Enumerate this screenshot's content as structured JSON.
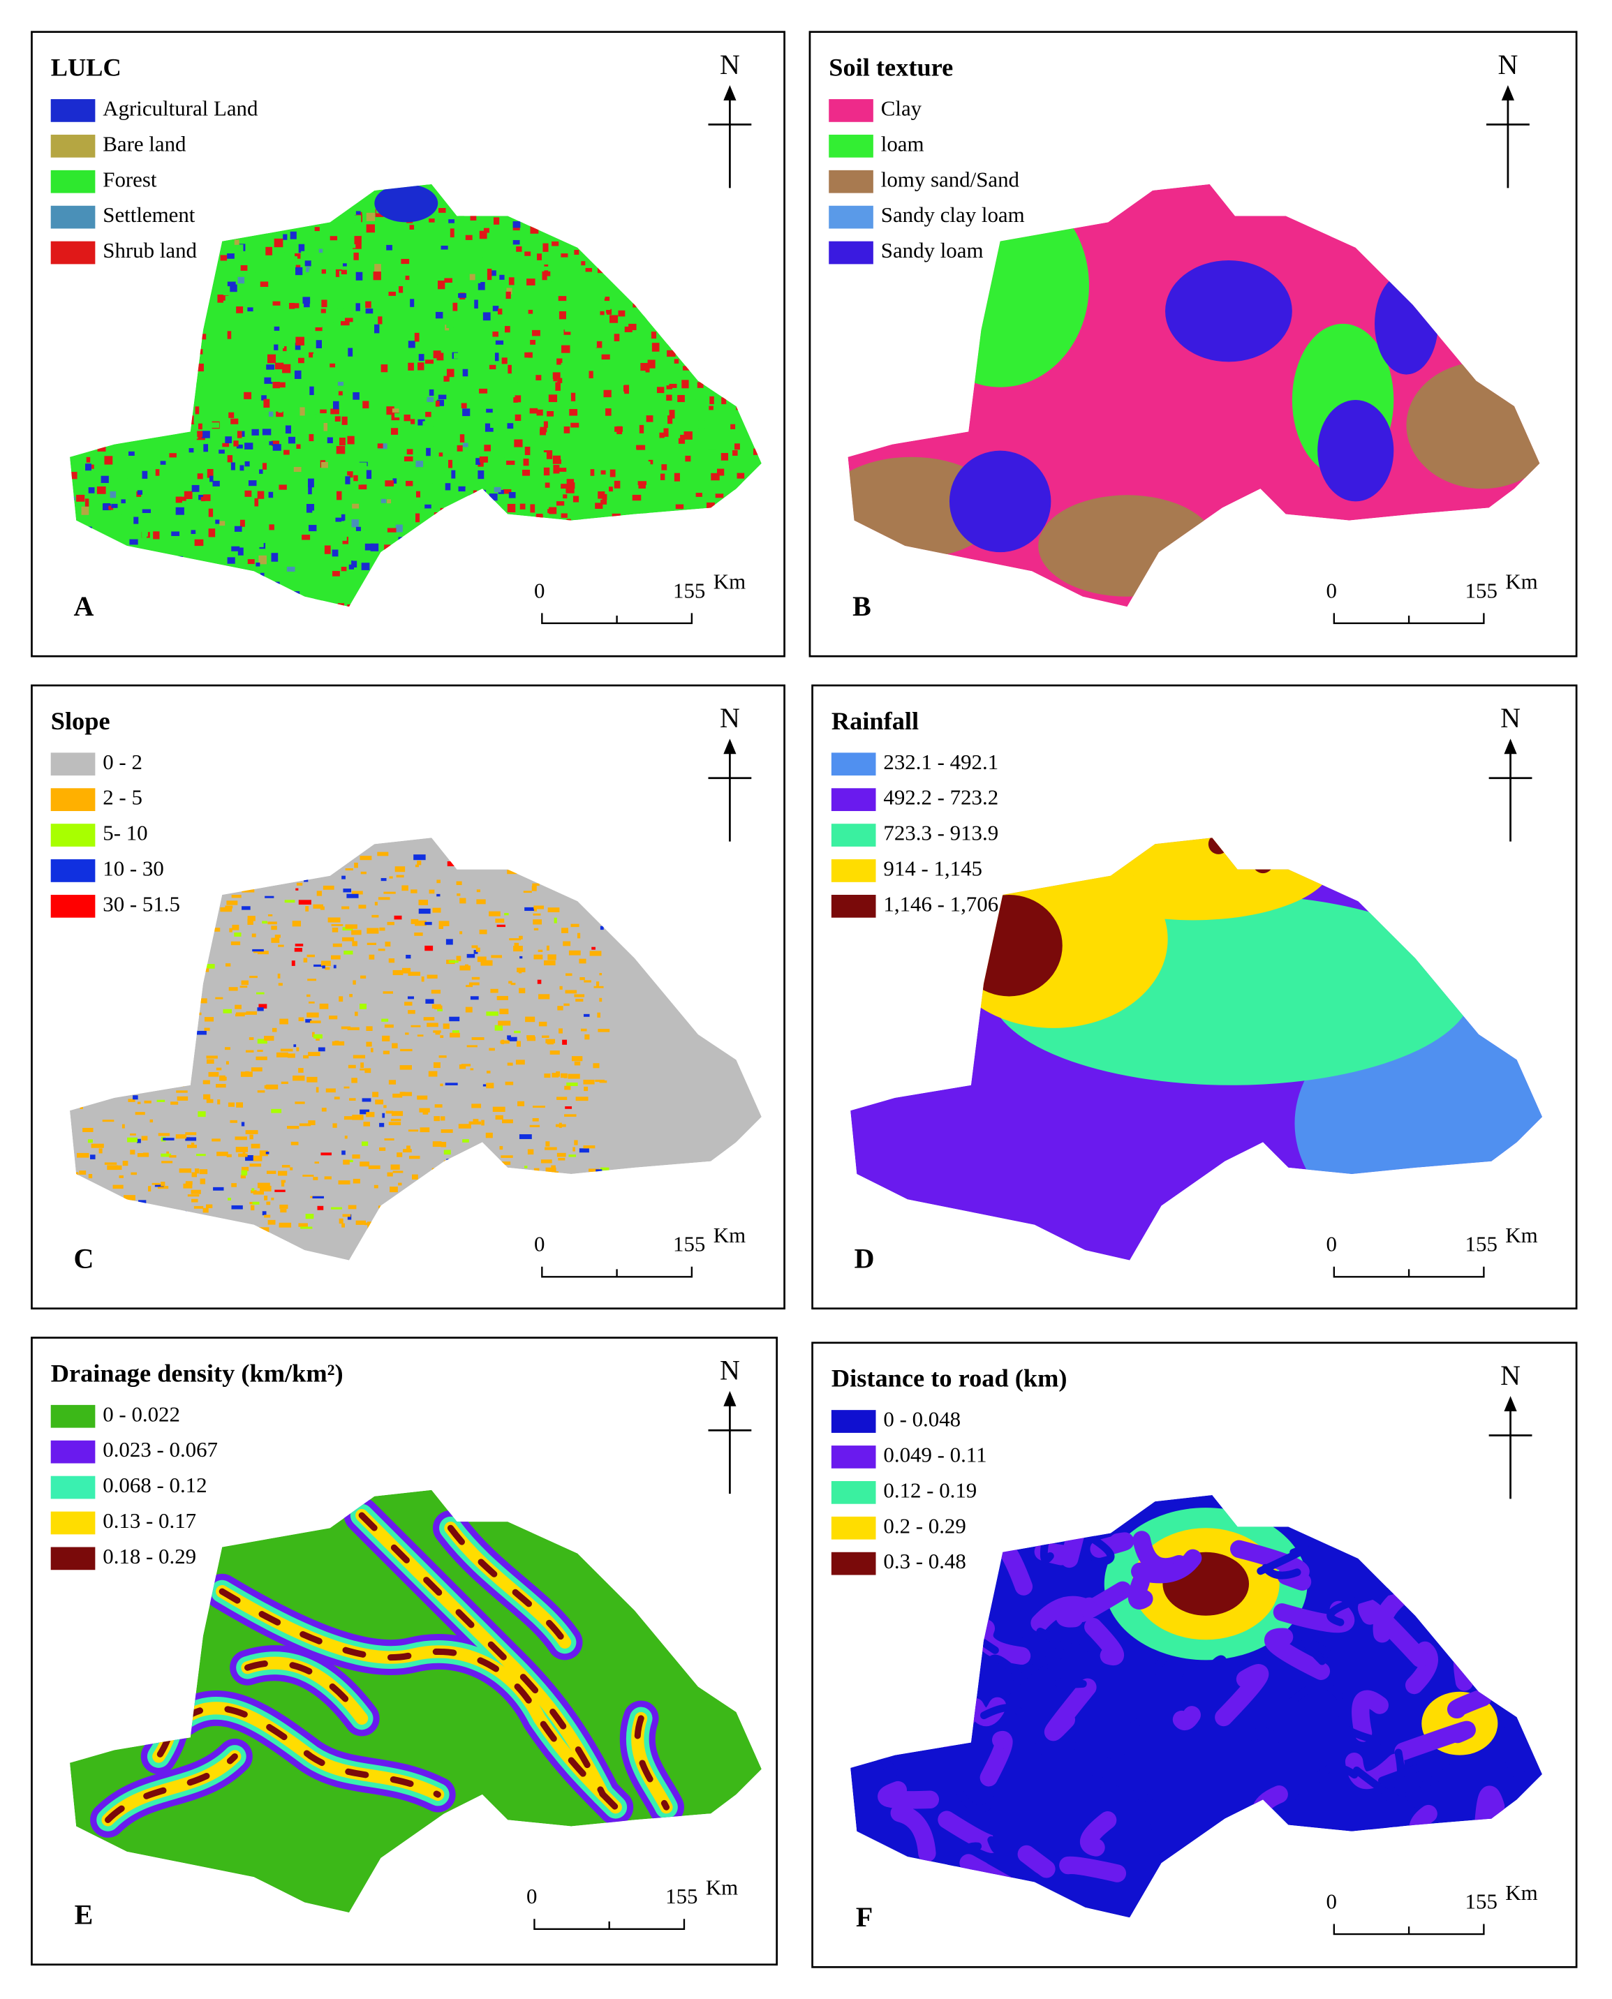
{
  "panels": [
    {
      "letter": "A",
      "title": "LULC",
      "north": "N",
      "scale": [
        "0",
        "155"
      ],
      "unit": "Km",
      "legend": [
        {
          "label": "Agricultural Land",
          "color": "#1a2bd0"
        },
        {
          "label": "Bare land",
          "color": "#b5a642"
        },
        {
          "label": "Forest",
          "color": "#2ee82e"
        },
        {
          "label": "Settlement",
          "color": "#4a90b8"
        },
        {
          "label": "Shrub land",
          "color": "#e01818"
        }
      ]
    },
    {
      "letter": "B",
      "title": "Soil texture",
      "north": "N",
      "scale": [
        "0",
        "155"
      ],
      "unit": "Km",
      "legend": [
        {
          "label": "Clay",
          "color": "#ee2a8a"
        },
        {
          "label": "loam",
          "color": "#33ee33"
        },
        {
          "label": "lomy sand/Sand",
          "color": "#a87a50"
        },
        {
          "label": "Sandy clay loam",
          "color": "#5a9ae8"
        },
        {
          "label": "Sandy loam",
          "color": "#3a1ae0"
        }
      ]
    },
    {
      "letter": "C",
      "title": "Slope",
      "north": "N",
      "scale": [
        "0",
        "155"
      ],
      "unit": "Km",
      "legend": [
        {
          "label": "0 - 2",
          "color": "#bdbdbd"
        },
        {
          "label": "2 - 5",
          "color": "#ffb000"
        },
        {
          "label": "5- 10",
          "color": "#a8ff00"
        },
        {
          "label": "10 - 30",
          "color": "#1030e0"
        },
        {
          "label": "30 - 51.5",
          "color": "#ff0000"
        }
      ]
    },
    {
      "letter": "D",
      "title": "Rainfall",
      "north": "N",
      "scale": [
        "0",
        "155"
      ],
      "unit": "Km",
      "legend": [
        {
          "label": "232.1 - 492.1",
          "color": "#5090f0"
        },
        {
          "label": "492.2 - 723.2",
          "color": "#6a1aee"
        },
        {
          "label": "723.3 - 913.9",
          "color": "#3af0a0"
        },
        {
          "label": "914 - 1,145",
          "color": "#ffdd00"
        },
        {
          "label": "1,146 - 1,706",
          "color": "#7a0a0a"
        }
      ]
    },
    {
      "letter": "E",
      "title": "Drainage density (km/km²)",
      "north": "N",
      "scale": [
        "0",
        "155"
      ],
      "unit": "Km",
      "legend": [
        {
          "label": "0 - 0.022",
          "color": "#3cb818"
        },
        {
          "label": "0.023 - 0.067",
          "color": "#6a1aee"
        },
        {
          "label": "0.068 - 0.12",
          "color": "#3af0b0"
        },
        {
          "label": "0.13 - 0.17",
          "color": "#ffdd00"
        },
        {
          "label": "0.18 - 0.29",
          "color": "#7a0a0a"
        }
      ]
    },
    {
      "letter": "F",
      "title": "Distance to road (km)",
      "north": "N",
      "scale": [
        "0",
        "155"
      ],
      "unit": "Km",
      "legend": [
        {
          "label": "0 - 0.048",
          "color": "#1010d0"
        },
        {
          "label": "0.049 - 0.11",
          "color": "#6a1aee"
        },
        {
          "label": "0.12 - 0.19",
          "color": "#3af0a0"
        },
        {
          "label": "0.2 - 0.29",
          "color": "#ffdd00"
        },
        {
          "label": "0.3 - 0.48",
          "color": "#7a0a0a"
        }
      ]
    }
  ]
}
